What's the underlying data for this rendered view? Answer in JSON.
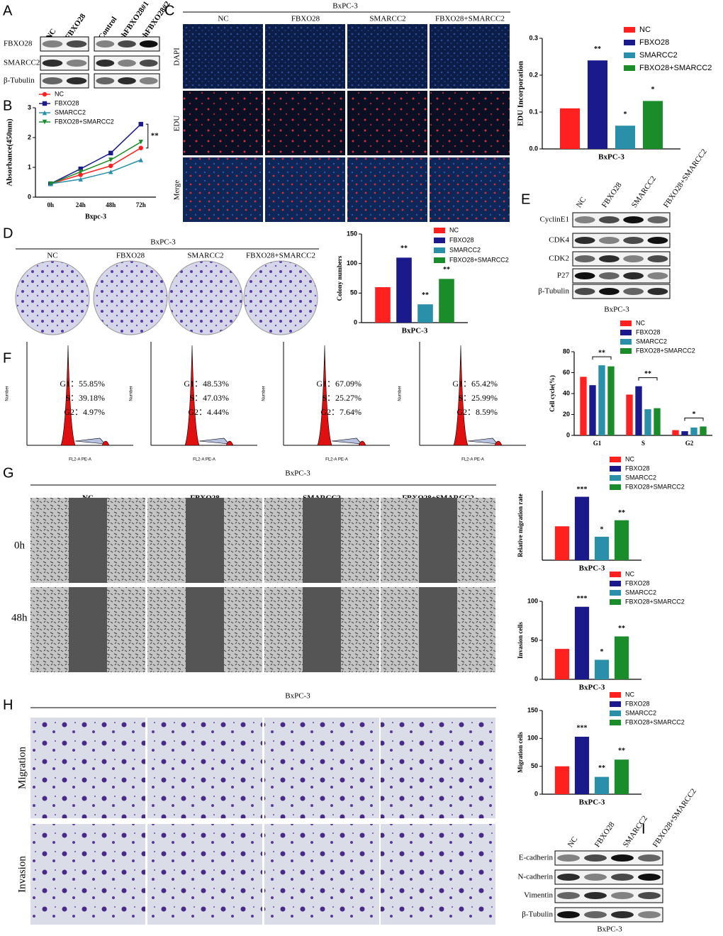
{
  "panel_letters": [
    "A",
    "B",
    "C",
    "D",
    "E",
    "F",
    "G",
    "H",
    "I"
  ],
  "panel_a": {
    "lanes": [
      "NC",
      "FBXO28",
      "Control",
      "shFBXO28#1",
      "shFBXO28#2"
    ],
    "rows": [
      "FBXO28",
      "SMARCC2",
      "β-Tubulin"
    ]
  },
  "panel_c_images": {
    "title": "BxPC-3",
    "columns": [
      "NC",
      "FBXO28",
      "SMARCC2",
      "FBXO28+SMARCC2"
    ],
    "rows": [
      "DAPI",
      "EDU",
      "Merge"
    ]
  },
  "panel_d_dishes": {
    "title": "BxPC-3",
    "columns": [
      "NC",
      "FBXO28",
      "SMARCC2",
      "FBXO28+SMARCC2"
    ]
  },
  "panel_e": {
    "lanes": [
      "NC",
      "FBXO28",
      "SMARCC2",
      "FBXO28+SMARCC2"
    ],
    "rows": [
      "CyclinE1",
      "CDK4",
      "CDK2",
      "P27",
      "β-Tubulin"
    ],
    "caption": "BxPC-3"
  },
  "panel_f_histograms": [
    {
      "lines": [
        "G1：55.85%",
        "S：39.18%",
        "G2：4.97%"
      ],
      "y_label": "Number",
      "x_label": "FL2-A PE-A"
    },
    {
      "lines": [
        "G1：48.53%",
        "S：47.03%",
        "G2：4.44%"
      ],
      "y_label": "Number",
      "x_label": "FL2-A PE-A"
    },
    {
      "lines": [
        "G1：67.09%",
        "S：25.27%",
        "G2：7.64%"
      ],
      "y_label": "Number",
      "x_label": "FL2-A PE-A"
    },
    {
      "lines": [
        "G1：65.42%",
        "S：25.99%",
        "G2：8.59%"
      ],
      "y_label": "Number",
      "x_label": "FL2-A PE-A"
    }
  ],
  "panel_g_images": {
    "title": "BxPC-3",
    "columns": [
      "NC",
      "FBXO28",
      "SMARCC2",
      "FBXO28+SMARCC2"
    ],
    "rows": [
      "0h",
      "48h"
    ]
  },
  "panel_h_images": {
    "title": "BxPC-3",
    "columns": [
      "NC",
      "FBXO28",
      "SMARCC2",
      "FBXO28+SMARCC2"
    ],
    "rows": [
      "Migration",
      "Invasion"
    ]
  },
  "panel_i": {
    "lanes": [
      "NC",
      "FBXO28",
      "SMARCC2",
      "FBXO28+SMARCC2"
    ],
    "rows": [
      "E-cadherin",
      "N-cadherin",
      "Vimentin",
      "β-Tubulin"
    ],
    "caption": "BxPC-3"
  },
  "chart_data": [
    {
      "type": "line",
      "y_label": "Absorbance(450nm)",
      "x_label": "Bxpc-3",
      "categories": [
        "0h",
        "24h",
        "48h",
        "72h"
      ],
      "ylim": [
        0,
        3
      ],
      "yticks": [
        0,
        1,
        2,
        3
      ],
      "series": [
        {
          "name": "NC",
          "color": "#ff2020",
          "marker": "circle",
          "values": [
            0.45,
            0.75,
            1.05,
            1.65
          ]
        },
        {
          "name": "FBXO28",
          "color": "#1a1a8c",
          "marker": "square",
          "values": [
            0.45,
            0.95,
            1.48,
            2.45
          ]
        },
        {
          "name": "SMARCC2",
          "color": "#2a8fa8",
          "marker": "triangle",
          "values": [
            0.45,
            0.6,
            0.85,
            1.25
          ]
        },
        {
          "name": "FBXO28+SMARCC2",
          "color": "#1a8c2a",
          "marker": "triangle-down",
          "values": [
            0.45,
            0.85,
            1.25,
            1.85
          ]
        }
      ],
      "annotations": [
        {
          "text": "**",
          "category": "72h"
        }
      ]
    },
    {
      "type": "bar",
      "y_label": "EDU Incorporation",
      "categories": [
        "BxPC-3"
      ],
      "ylim": [
        0,
        0.3
      ],
      "yticks": [
        {
          "value": 0,
          "label": "0.0"
        },
        0.1,
        0.2,
        0.3
      ],
      "series": [
        {
          "name": "NC",
          "color": "#ff2020",
          "values": [
            0.11
          ]
        },
        {
          "name": "FBXO28",
          "color": "#1a1a8c",
          "values": [
            0.24
          ]
        },
        {
          "name": "SMARCC2",
          "color": "#2a8fa8",
          "values": [
            0.063
          ]
        },
        {
          "name": "FBXO28+SMARCC2",
          "color": "#1a8c2a",
          "values": [
            0.13
          ]
        }
      ],
      "annotations": [
        {
          "text": "**",
          "series": "FBXO28"
        },
        {
          "text": "*",
          "series": "SMARCC2"
        },
        {
          "text": "*",
          "series": "FBXO28+SMARCC2"
        }
      ]
    },
    {
      "type": "bar",
      "y_label": "Colony numbers",
      "categories": [
        "BxPC-3"
      ],
      "ylim": [
        0,
        150
      ],
      "yticks": [
        0,
        50,
        100,
        150
      ],
      "series": [
        {
          "name": "NC",
          "color": "#ff2020",
          "values": [
            60
          ]
        },
        {
          "name": "FBXO28",
          "color": "#1a1a8c",
          "values": [
            110
          ]
        },
        {
          "name": "SMARCC2",
          "color": "#2a8fa8",
          "values": [
            31
          ]
        },
        {
          "name": "FBXO28+SMARCC2",
          "color": "#1a8c2a",
          "values": [
            74
          ]
        }
      ],
      "annotations": [
        {
          "text": "**",
          "series": "FBXO28"
        },
        {
          "text": "**",
          "series": "SMARCC2"
        },
        {
          "text": "**",
          "series": "FBXO28+SMARCC2"
        }
      ]
    },
    {
      "type": "bar",
      "y_label": "Cell cycle(%)",
      "categories": [
        "G1",
        "S",
        "G2"
      ],
      "ylim": [
        0,
        80
      ],
      "yticks": [
        0,
        20,
        40,
        60,
        80
      ],
      "series": [
        {
          "name": "NC",
          "color": "#ff2020",
          "values": [
            56,
            39,
            5
          ]
        },
        {
          "name": "FBXO28",
          "color": "#1a1a8c",
          "values": [
            48,
            47,
            4
          ]
        },
        {
          "name": "SMARCC2",
          "color": "#2a8fa8",
          "values": [
            67,
            25,
            7.5
          ]
        },
        {
          "name": "FBXO28+SMARCC2",
          "color": "#1a8c2a",
          "values": [
            66,
            26,
            8.5
          ]
        }
      ],
      "annotations": [
        {
          "text": "**",
          "category": "G1"
        },
        {
          "text": "**",
          "category": "S"
        },
        {
          "text": "*",
          "category": "G2"
        }
      ]
    },
    {
      "type": "bar",
      "y_label": "Relative migration rate",
      "categories": [
        "BxPC-3"
      ],
      "ylim": [
        0,
        0.8
      ],
      "series": [
        {
          "name": "NC",
          "color": "#ff2020",
          "values": [
            0.39
          ]
        },
        {
          "name": "FBXO28",
          "color": "#1a1a8c",
          "values": [
            0.73
          ]
        },
        {
          "name": "SMARCC2",
          "color": "#2a8fa8",
          "values": [
            0.27
          ]
        },
        {
          "name": "FBXO28+SMARCC2",
          "color": "#1a8c2a",
          "values": [
            0.46
          ]
        }
      ],
      "annotations": [
        {
          "text": "***",
          "series": "FBXO28"
        },
        {
          "text": "*",
          "series": "SMARCC2"
        },
        {
          "text": "**",
          "series": "FBXO28+SMARCC2"
        }
      ]
    },
    {
      "type": "bar",
      "y_label": "Invasion cells",
      "categories": [
        "BxPC-3"
      ],
      "ylim": [
        0,
        100
      ],
      "yticks": [
        0,
        50,
        100
      ],
      "series": [
        {
          "name": "NC",
          "color": "#ff2020",
          "values": [
            39
          ]
        },
        {
          "name": "FBXO28",
          "color": "#1a1a8c",
          "values": [
            93
          ]
        },
        {
          "name": "SMARCC2",
          "color": "#2a8fa8",
          "values": [
            25
          ]
        },
        {
          "name": "FBXO28+SMARCC2",
          "color": "#1a8c2a",
          "values": [
            55
          ]
        }
      ],
      "annotations": [
        {
          "text": "***",
          "series": "FBXO28"
        },
        {
          "text": "*",
          "series": "SMARCC2"
        },
        {
          "text": "**",
          "series": "FBXO28+SMARCC2"
        }
      ]
    },
    {
      "type": "bar",
      "y_label": "Migration cells",
      "categories": [
        "BxPC-3"
      ],
      "ylim": [
        0,
        150
      ],
      "yticks": [
        0,
        50,
        100,
        150
      ],
      "series": [
        {
          "name": "NC",
          "color": "#ff2020",
          "values": [
            50
          ]
        },
        {
          "name": "FBXO28",
          "color": "#1a1a8c",
          "values": [
            103
          ]
        },
        {
          "name": "SMARCC2",
          "color": "#2a8fa8",
          "values": [
            31
          ]
        },
        {
          "name": "FBXO28+SMARCC2",
          "color": "#1a8c2a",
          "values": [
            62
          ]
        }
      ],
      "annotations": [
        {
          "text": "***",
          "series": "FBXO28"
        },
        {
          "text": "**",
          "series": "SMARCC2"
        },
        {
          "text": "**",
          "series": "FBXO28+SMARCC2"
        }
      ]
    }
  ]
}
